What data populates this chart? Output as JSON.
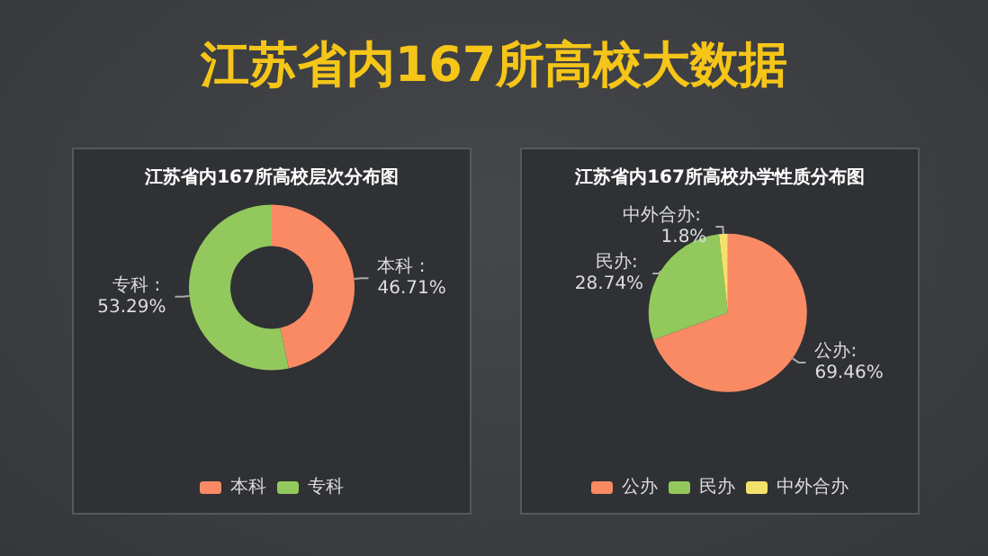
{
  "chart_data": [
    {
      "type": "other",
      "title": "江苏省内167所高校大数据"
    },
    {
      "type": "donut",
      "title": "江苏省内167所高校层次分布图",
      "categories": [
        "本科",
        "专科"
      ],
      "values": [
        46.71,
        53.29
      ],
      "colors": [
        "#f98a64",
        "#93c95c"
      ],
      "value_labels": [
        "本科 : 46.71%",
        "专科 : 53.29%"
      ],
      "legend": "bottom"
    },
    {
      "type": "pie",
      "title": "江苏省内167所高校办学性质分布图",
      "categories": [
        "公办",
        "民办",
        "中外合办"
      ],
      "values": [
        69.46,
        28.74,
        1.8
      ],
      "colors": [
        "#f98a64",
        "#93c95c",
        "#f2e26c"
      ],
      "value_labels": [
        "公办: 69.46%",
        "民办: 28.74%",
        "中外合办: 1.8%"
      ],
      "legend": "bottom"
    }
  ]
}
